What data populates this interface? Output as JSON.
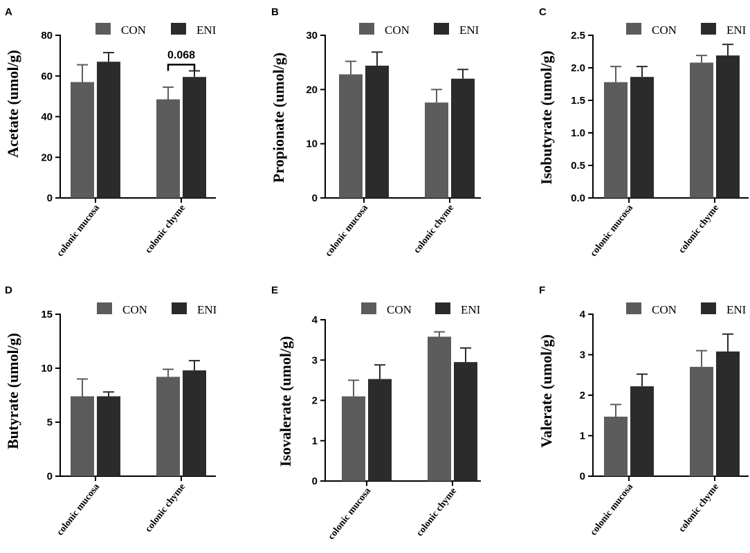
{
  "colors": {
    "CON": "#5c5c5c",
    "ENI": "#2b2b2b",
    "axis": "#000000"
  },
  "legend": {
    "con_label": "CON",
    "eni_label": "ENI"
  },
  "chart_data": [
    {
      "panel": "A",
      "type": "bar",
      "ylabel": "Acetate (umol/g)",
      "categories": [
        "colonic mucosa",
        "colonic chyme"
      ],
      "yticks": [
        "0",
        "20",
        "40",
        "60",
        "80"
      ],
      "ylim": [
        0,
        80
      ],
      "series": [
        {
          "name": "CON",
          "values": [
            57,
            48.5
          ],
          "errors": [
            8.5,
            6
          ]
        },
        {
          "name": "ENI",
          "values": [
            67,
            59.5
          ],
          "errors": [
            4.5,
            3
          ]
        }
      ],
      "annotation": {
        "text": "0.068",
        "category": "colonic chyme"
      }
    },
    {
      "panel": "B",
      "type": "bar",
      "ylabel": "Propionate (umol/g)",
      "categories": [
        "colonic mucosa",
        "colonic chyme"
      ],
      "yticks": [
        "0",
        "10",
        "20",
        "30"
      ],
      "ylim": [
        0,
        30
      ],
      "series": [
        {
          "name": "CON",
          "values": [
            22.8,
            17.6
          ],
          "errors": [
            2.4,
            2.4
          ]
        },
        {
          "name": "ENI",
          "values": [
            24.4,
            22
          ],
          "errors": [
            2.5,
            1.7
          ]
        }
      ]
    },
    {
      "panel": "C",
      "type": "bar",
      "ylabel": "Isobutyrate (umol/g)",
      "categories": [
        "colonic mucosa",
        "colonic chyme"
      ],
      "yticks": [
        "0.0",
        "0.5",
        "1.0",
        "1.5",
        "2.0",
        "2.5"
      ],
      "ylim": [
        0,
        2.5
      ],
      "series": [
        {
          "name": "CON",
          "values": [
            1.78,
            2.08
          ],
          "errors": [
            0.24,
            0.11
          ]
        },
        {
          "name": "ENI",
          "values": [
            1.86,
            2.19
          ],
          "errors": [
            0.16,
            0.17
          ]
        }
      ]
    },
    {
      "panel": "D",
      "type": "bar",
      "ylabel": "Butyrate (umol/g)",
      "categories": [
        "colonic mucosa",
        "colonic chyme"
      ],
      "yticks": [
        "0",
        "5",
        "10",
        "15"
      ],
      "ylim": [
        0,
        15
      ],
      "series": [
        {
          "name": "CON",
          "values": [
            7.4,
            9.2
          ],
          "errors": [
            1.6,
            0.7
          ]
        },
        {
          "name": "ENI",
          "values": [
            7.4,
            9.8
          ],
          "errors": [
            0.4,
            0.9
          ]
        }
      ]
    },
    {
      "panel": "E",
      "type": "bar",
      "ylabel": "Isovalerate (umol/g)",
      "categories": [
        "colonic mucosa",
        "colonic chyme"
      ],
      "yticks": [
        "0",
        "1",
        "2",
        "3",
        "4"
      ],
      "ylim": [
        0,
        4
      ],
      "series": [
        {
          "name": "CON",
          "values": [
            2.1,
            3.58
          ],
          "errors": [
            0.4,
            0.12
          ]
        },
        {
          "name": "ENI",
          "values": [
            2.53,
            2.95
          ],
          "errors": [
            0.35,
            0.35
          ]
        }
      ]
    },
    {
      "panel": "F",
      "type": "bar",
      "ylabel": "Valerate (umol/g)",
      "categories": [
        "colonic mucosa",
        "colonic chyme"
      ],
      "yticks": [
        "0",
        "1",
        "2",
        "3",
        "4"
      ],
      "ylim": [
        0,
        4
      ],
      "series": [
        {
          "name": "CON",
          "values": [
            1.47,
            2.7
          ],
          "errors": [
            0.3,
            0.4
          ]
        },
        {
          "name": "ENI",
          "values": [
            2.22,
            3.08
          ],
          "errors": [
            0.3,
            0.43
          ]
        }
      ]
    }
  ]
}
